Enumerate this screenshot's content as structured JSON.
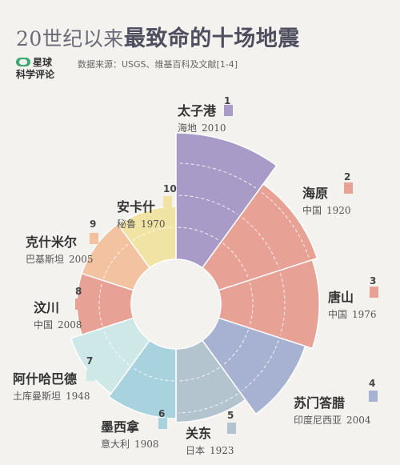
{
  "header": {
    "title_prefix": "20世纪以来",
    "title_highlight": "最致命的十场地震",
    "brand_line1": "星球",
    "brand_line2": "科学评论",
    "source": "数据来源：USGS、维基百科及文献[1-4]"
  },
  "chart_data": {
    "type": "polar-bar",
    "title": "20世纪以来最致命的十场地震",
    "series": [
      {
        "rank": "1",
        "name": "太子港",
        "place": "海地",
        "year": "2010",
        "color": "#a99bc8"
      },
      {
        "rank": "2",
        "name": "海原",
        "place": "中国",
        "year": "1920",
        "color": "#e8a195"
      },
      {
        "rank": "3",
        "name": "唐山",
        "place": "中国",
        "year": "1976",
        "color": "#e8a195"
      },
      {
        "rank": "4",
        "name": "苏门答腊",
        "place": "印度尼西亚",
        "year": "2004",
        "color": "#a7b2d2"
      },
      {
        "rank": "5",
        "name": "关东",
        "place": "日本",
        "year": "1923",
        "color": "#b3c4cf"
      },
      {
        "rank": "6",
        "name": "墨西拿",
        "place": "意大利",
        "year": "1908",
        "color": "#a9d2df"
      },
      {
        "rank": "7",
        "name": "阿什哈巴德",
        "place": "土库曼斯坦",
        "year": "1948",
        "color": "#cde8e7"
      },
      {
        "rank": "8",
        "name": "汶川",
        "place": "中国",
        "year": "2008",
        "color": "#e8a195"
      },
      {
        "rank": "9",
        "name": "克什米尔",
        "place": "巴基斯坦",
        "year": "2005",
        "color": "#f3c2a0"
      },
      {
        "rank": "10",
        "name": "安卡什",
        "place": "秘鲁",
        "year": "1970",
        "color": "#f1e3a4"
      }
    ],
    "relative_size": [
      1.0,
      0.82,
      0.78,
      0.72,
      0.58,
      0.55,
      0.52,
      0.43,
      0.43,
      0.42
    ]
  }
}
